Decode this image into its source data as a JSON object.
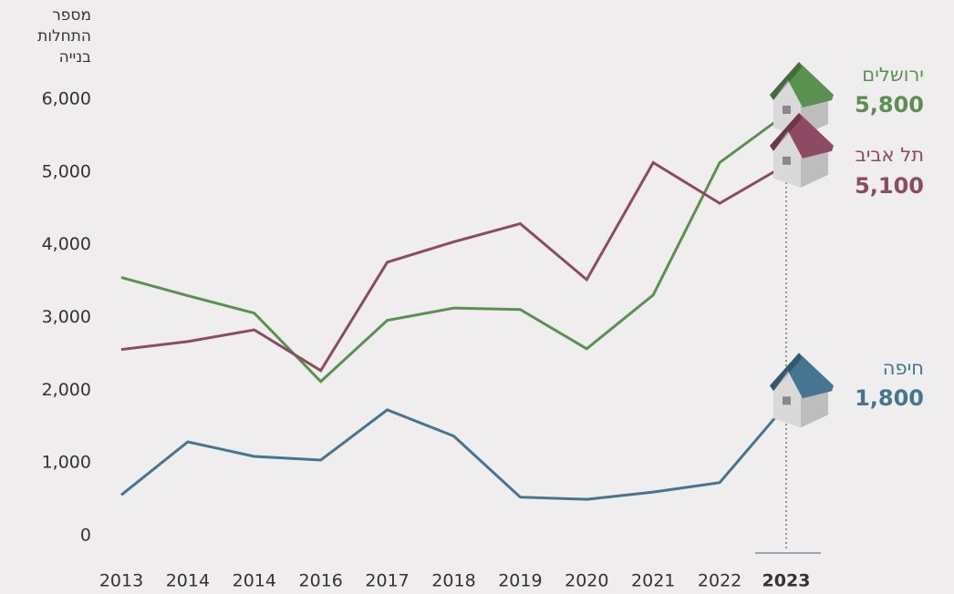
{
  "chart_data": {
    "type": "line",
    "y_label": [
      "מספר",
      "התחלות",
      "בנייה"
    ],
    "categories": [
      "2013",
      "2014",
      "2014",
      "2016",
      "2017",
      "2018",
      "2019",
      "2020",
      "2021",
      "2022",
      "2023"
    ],
    "series": [
      {
        "name": "ירושלים",
        "color": "#5a9150",
        "values": [
          3550,
          3300,
          3060,
          2120,
          2960,
          3130,
          3110,
          2570,
          3310,
          5130,
          5800
        ],
        "value_labels": [
          null,
          null,
          null,
          null,
          null,
          null,
          null,
          null,
          null,
          null,
          "5,800"
        ]
      },
      {
        "name": "תל אביב",
        "color": "#8f4a63",
        "values": [
          2560,
          2670,
          2830,
          2270,
          3760,
          4040,
          4290,
          3520,
          5130,
          4570,
          5100
        ],
        "value_labels": [
          null,
          null,
          null,
          null,
          null,
          null,
          null,
          null,
          null,
          null,
          "5,100"
        ]
      },
      {
        "name": "חיפה",
        "color": "#457590",
        "values": [
          560,
          1290,
          1090,
          1040,
          1730,
          1370,
          530,
          500,
          600,
          730,
          1800
        ],
        "value_labels": [
          null,
          null,
          null,
          null,
          null,
          null,
          null,
          null,
          null,
          null,
          "1,800"
        ]
      }
    ],
    "ylim": [
      0,
      6000
    ],
    "yticks": [
      0,
      {
        "value": 1000,
        "label": "1,000"
      },
      {
        "value": 2000,
        "label": "2,000"
      },
      {
        "value": 3000,
        "label": "3,000"
      },
      {
        "value": 4000,
        "label": "4,000"
      },
      {
        "value": 5000,
        "label": "5,000"
      },
      {
        "value": 6000,
        "label": "6,000"
      }
    ],
    "grid": false
  }
}
